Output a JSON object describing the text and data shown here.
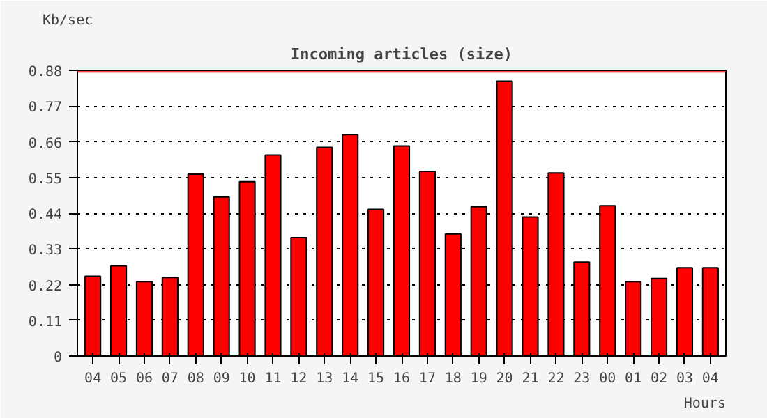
{
  "chart_data": {
    "type": "bar",
    "title": "Incoming articles (size)",
    "xlabel": "Hours",
    "ylabel": "Kb/sec",
    "categories": [
      "04",
      "05",
      "06",
      "07",
      "08",
      "09",
      "10",
      "11",
      "12",
      "13",
      "14",
      "15",
      "16",
      "17",
      "18",
      "19",
      "20",
      "21",
      "22",
      "23",
      "00",
      "01",
      "02",
      "03",
      "04"
    ],
    "values": [
      0.246,
      0.278,
      0.229,
      0.242,
      0.56,
      0.49,
      0.537,
      0.619,
      0.365,
      0.643,
      0.682,
      0.452,
      0.647,
      0.569,
      0.376,
      0.46,
      0.847,
      0.428,
      0.564,
      0.289,
      0.463,
      0.229,
      0.239,
      0.272,
      0.272
    ],
    "color": "#ff0000",
    "ylim": [
      0,
      0.88
    ],
    "yticks": [
      0,
      0.11,
      0.22,
      0.33,
      0.44,
      0.55,
      0.66,
      0.77,
      0.88
    ],
    "grid": "y",
    "ref_lines": [
      {
        "axis": "y",
        "value": 0.875,
        "color": "#ff0000"
      }
    ]
  }
}
